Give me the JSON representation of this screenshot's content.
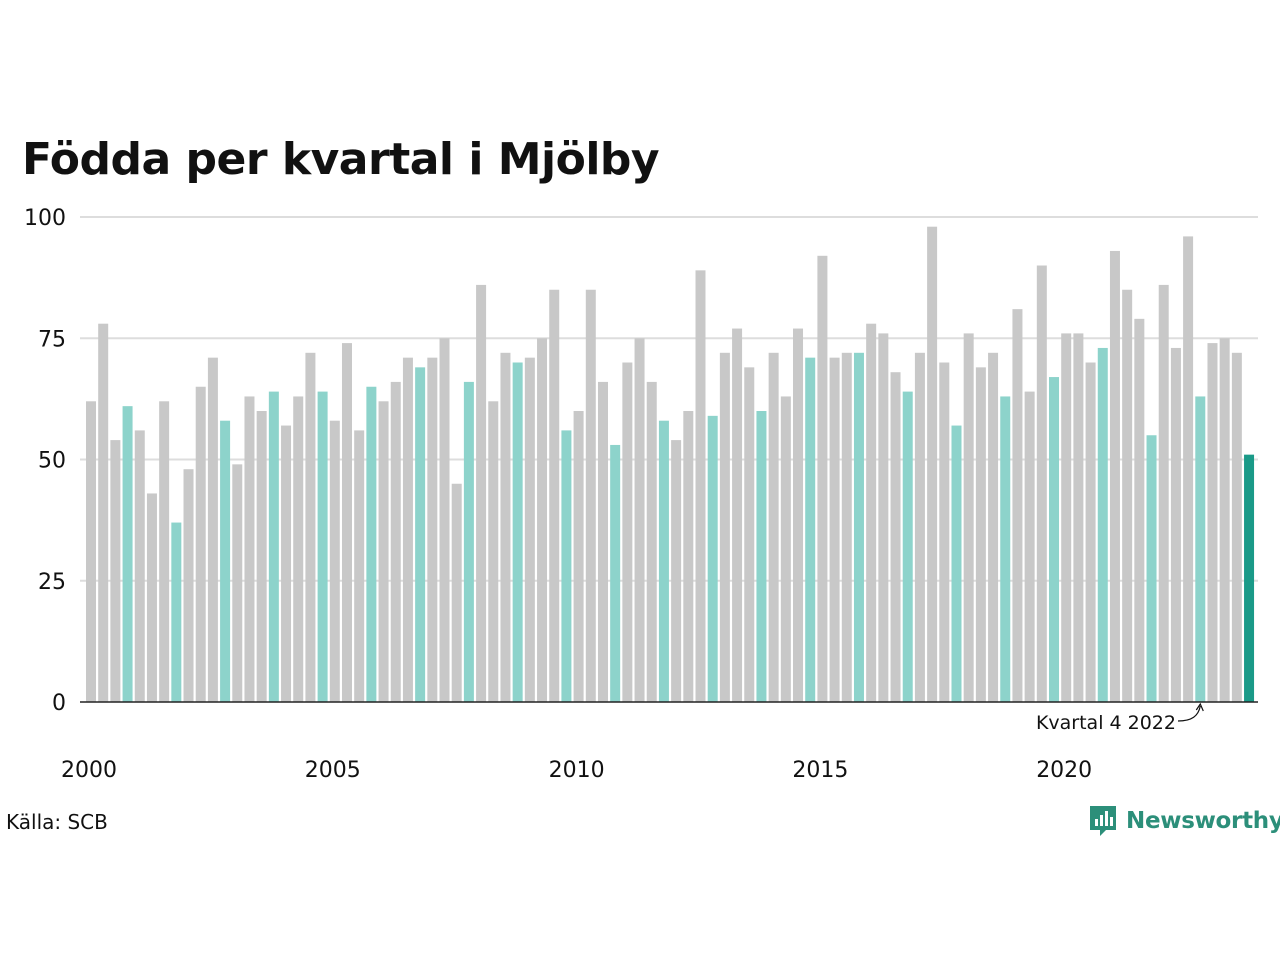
{
  "title": "Födda per kvartal i Mjölby",
  "source": "Källa: SCB",
  "brand": "Newsworthy",
  "colors": {
    "bar_default": "#c8c8c8",
    "bar_q4": "#8dd3cb",
    "bar_latest": "#1a9a88",
    "grid": "#dddddd",
    "axis": "#222222",
    "brand": "#2c8f7a"
  },
  "chart_data": {
    "type": "bar",
    "title": "Födda per kvartal i Mjölby",
    "xlabel": "",
    "ylabel": "",
    "ylim": [
      0,
      100
    ],
    "y_ticks": [
      0,
      25,
      50,
      75,
      100
    ],
    "x_tick_labels": [
      "2000",
      "2005",
      "2010",
      "2015",
      "2020"
    ],
    "grid": true,
    "start_year": 2000,
    "quarters_per_year": 4,
    "highlight": "every fourth quarter (Q4) highlighted in light teal; latest bar in dark teal",
    "annotation": {
      "text": "Kvartal 4 2022",
      "target_index": 91
    },
    "values": [
      62,
      78,
      54,
      61,
      56,
      43,
      62,
      37,
      48,
      65,
      71,
      58,
      49,
      63,
      60,
      64,
      57,
      63,
      72,
      64,
      58,
      74,
      56,
      65,
      62,
      66,
      71,
      69,
      71,
      75,
      45,
      66,
      86,
      62,
      72,
      70,
      71,
      75,
      85,
      56,
      60,
      85,
      66,
      53,
      70,
      75,
      66,
      58,
      54,
      60,
      89,
      59,
      72,
      77,
      69,
      60,
      72,
      63,
      77,
      71,
      92,
      71,
      72,
      72,
      78,
      76,
      68,
      64,
      72,
      98,
      70,
      57,
      76,
      69,
      72,
      63,
      81,
      64,
      90,
      67,
      76,
      76,
      70,
      73,
      93,
      85,
      79,
      55,
      86,
      73,
      96,
      63,
      74,
      75,
      72,
      51
    ]
  }
}
